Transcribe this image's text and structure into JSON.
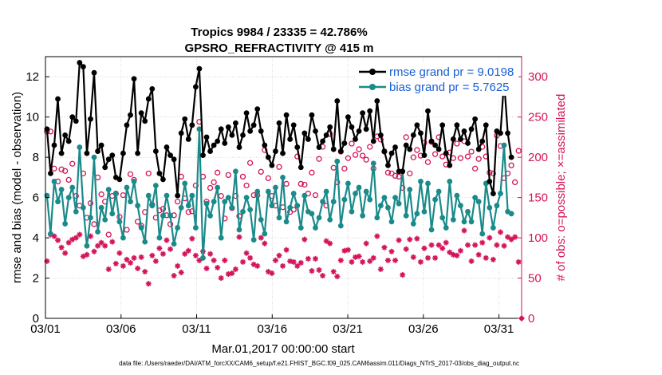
{
  "chart_data": {
    "type": "line",
    "title_line1": "Tropics 9984 / 23335 = 42.786%",
    "title_line2": "GPSRO_REFRACTIVITY @ 415 m",
    "xlabel": "Mar.01,2017 00:00:00 start",
    "ylabel": "rmse and bias (model - observation)",
    "ylabel_right": "# of obs: o=possible; ×=assimilated",
    "footer": "data file: /Users/raeder/DAI/ATM_forcXX/CAM6_setup/f.e21.FHIST_BGC.f09_025.CAM6assim.011/Diags_NTrS_2017-03/obs_diag_output.nc",
    "xlim": [
      0,
      31.5
    ],
    "ylim": [
      0,
      13
    ],
    "ylim_right": [
      0,
      325
    ],
    "x_ticks": [
      0,
      5,
      10,
      15,
      20,
      25,
      30
    ],
    "x_tick_labels": [
      "03/01",
      "03/06",
      "03/11",
      "03/16",
      "03/21",
      "03/26",
      "03/31"
    ],
    "y_ticks": [
      0,
      2,
      4,
      6,
      8,
      10,
      12
    ],
    "y_ticks_right": [
      0,
      50,
      100,
      150,
      200,
      250,
      300
    ],
    "grid": true,
    "legend_position": "top-right",
    "colors": {
      "rmse": "#000000",
      "bias": "#1a8a8a",
      "obs": "#d4145a",
      "grid": "#bdbdbd",
      "legend": "#1a5fd6"
    },
    "series": [
      {
        "name": "rmse grand pr = 9.0198",
        "values": [
          9.4,
          7.2,
          8.6,
          10.9,
          8.2,
          9.1,
          8.8,
          10,
          9.8,
          12.7,
          12.5,
          8.2,
          9.9,
          12.2,
          8.3,
          8.6,
          7.5,
          7.9,
          8.1,
          7.0,
          6.9,
          8.2,
          9.6,
          10.1,
          11.9,
          8.2,
          10.2,
          9.8,
          10.9,
          11.4,
          8.3,
          7.2,
          6.9,
          8.5,
          8.1,
          7.9,
          6.1,
          9.2,
          9.9,
          8.9,
          9.6,
          11.5,
          12.4,
          8.1,
          9.0,
          8.3,
          8.6,
          8.8,
          9.4,
          8.7,
          9.5,
          9.1,
          9.7,
          8.5,
          9.1,
          10.2,
          9.3,
          9.6,
          10.4,
          9.3,
          8.6,
          8.0,
          7.6,
          8.3,
          9.7,
          8.2,
          10.1,
          8.9,
          9.6,
          8.5,
          7.5,
          9.2,
          8.9,
          10.1,
          9.3,
          8.5,
          8.8,
          9.1,
          9.5,
          8.4,
          10.8,
          8.3,
          8.7,
          10.0,
          9.5,
          8.9,
          9.3,
          10.2,
          9.4,
          10.3,
          8.8,
          10.8,
          9.1,
          8.3,
          7.6,
          8.2,
          8.5,
          7.3,
          7.3,
          8.6,
          8.4,
          9.1,
          9.6,
          9.2,
          8.1,
          10.3,
          8.8,
          8.6,
          8.4,
          9.6,
          8.2,
          7.6,
          8.9,
          9.6,
          8.9,
          9.3,
          8.7,
          9.4,
          9.9,
          8.4,
          8.8,
          9.6,
          6.8,
          6.2,
          9.3,
          9.2,
          11.8,
          9.2,
          8.0
        ]
      },
      {
        "name": "bias grand pr = 5.7625",
        "values": [
          6.1,
          4.2,
          6.8,
          5.8,
          6.4,
          4.7,
          6.0,
          6.5,
          5.3,
          8.5,
          5.5,
          3.6,
          5.0,
          8.0,
          4.3,
          5.5,
          4.9,
          6.4,
          5.2,
          6.2,
          4.8,
          4.0,
          6.5,
          5.8,
          6.8,
          5.6,
          4.5,
          3.8,
          6.1,
          5.6,
          6.6,
          4.0,
          5.1,
          6.1,
          5.1,
          3.7,
          4.5,
          5.5,
          6.7,
          5.6,
          6.1,
          4.5,
          9.4,
          3.0,
          5.7,
          5.1,
          5.8,
          6.5,
          4.0,
          5.8,
          6.0,
          5.5,
          7.3,
          4.4,
          5.3,
          6.0,
          5.4,
          3.9,
          6.3,
          4.9,
          4.2,
          6.3,
          5.6,
          6.5,
          5.0,
          7.0,
          4.8,
          5.5,
          6.2,
          5.6,
          4.5,
          6.1,
          5.3,
          5.2,
          4.5,
          5.0,
          5.8,
          6.3,
          4.9,
          5.8,
          7.8,
          4.6,
          5.9,
          6.7,
          5.3,
          6.2,
          6.5,
          5.1,
          6.3,
          5.9,
          7.7,
          5.0,
          5.6,
          6.0,
          5.5,
          4.8,
          6.0,
          5.7,
          7.3,
          5.1,
          6.4,
          4.7,
          5.2,
          6.8,
          5.3,
          6.7,
          4.4,
          5.9,
          6.3,
          5.0,
          4.5,
          6.8,
          4.9,
          6.1,
          5.6,
          4.8,
          5.3,
          4.8,
          6.0,
          5.8,
          4.2,
          6.7,
          5.5,
          4.5,
          5.6,
          6.2,
          8.6,
          5.3,
          5.2
        ]
      },
      {
        "name": "# of obs possible",
        "values": [
          232,
          232,
          186,
          170,
          185,
          183,
          172,
          192,
          152,
          140,
          180,
          125,
          143,
          117,
          175,
          154,
          145,
          104,
          152,
          155,
          126,
          153,
          110,
          179,
          172,
          120,
          115,
          132,
          180,
          141,
          125,
          134,
          136,
          128,
          117,
          128,
          145,
          176,
          149,
          132,
          133,
          165,
          244,
          176,
          145,
          162,
          169,
          181,
          152,
          124,
          178,
          137,
          152,
          127,
          176,
          165,
          193,
          153,
          153,
          182,
          209,
          174,
          152,
          140,
          188,
          138,
          167,
          132,
          135,
          201,
          167,
          166,
          155,
          181,
          153,
          198,
          213,
          140,
          229,
          187,
          169,
          207,
          186,
          199,
          217,
          203,
          210,
          202,
          197,
          213,
          186,
          226,
          222,
          207,
          181,
          180,
          177,
          176,
          162,
          225,
          180,
          200,
          209,
          202,
          218,
          194,
          219,
          204,
          225,
          201,
          191,
          206,
          199,
          217,
          199,
          220,
          201,
          207,
          186,
          198,
          213,
          201,
          181,
          180,
          227,
          214,
          174,
          180,
          190,
          169,
          208
        ]
      },
      {
        "name": "# of obs assimilated",
        "values": [
          71,
          104,
          102,
          97,
          88,
          81,
          94,
          98,
          100,
          104,
          77,
          79,
          102,
          83,
          90,
          94,
          90,
          61,
          95,
          68,
          81,
          65,
          73,
          69,
          75,
          62,
          76,
          58,
          43,
          78,
          71,
          87,
          80,
          97,
          86,
          53,
          65,
          57,
          80,
          84,
          99,
          78,
          72,
          83,
          62,
          80,
          72,
          63,
          50,
          72,
          55,
          56,
          61,
          101,
          70,
          81,
          75,
          67,
          65,
          100,
          93,
          58,
          56,
          72,
          78,
          65,
          85,
          71,
          70,
          65,
          69,
          98,
          74,
          59,
          74,
          60,
          53,
          96,
          93,
          58,
          52,
          72,
          84,
          85,
          70,
          76,
          77,
          70,
          93,
          71,
          75,
          102,
          61,
          88,
          72,
          83,
          72,
          97,
          54,
          86,
          98,
          76,
          99,
          70,
          87,
          75,
          91,
          75,
          91,
          87,
          94,
          82,
          79,
          78,
          84,
          109,
          91,
          71,
          91,
          79,
          94,
          75,
          100,
          73,
          91,
          107,
          90,
          101,
          98,
          101,
          70
        ]
      }
    ]
  }
}
